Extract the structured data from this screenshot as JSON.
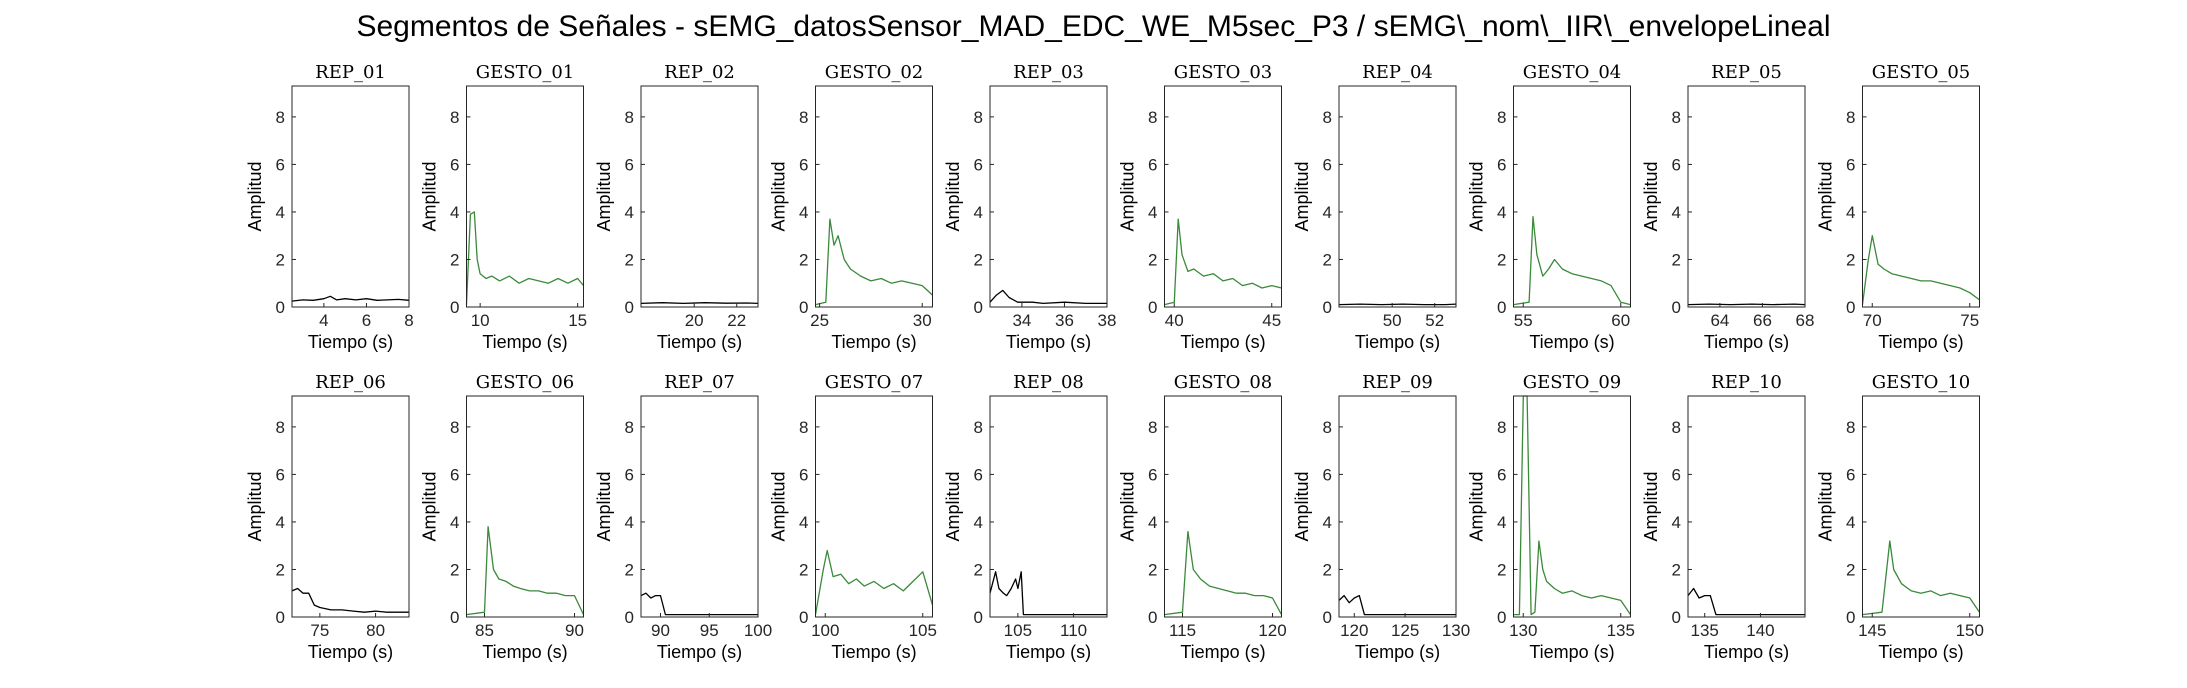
{
  "figure": {
    "title": "Segmentos de Señales - sEMG_datosSensor_MAD_EDC_WE_M5sec_P3 / sEMG\\_nom\\_IIR\\_envelopeLineal"
  },
  "colors": {
    "rep": "#000000",
    "gesto": "#3a8a3a",
    "axis": "#262626"
  },
  "chart_data": {
    "type": "line",
    "xlabel": "Tiempo (s)",
    "ylabel": "Amplitud",
    "ylim": [
      0,
      9.3
    ],
    "yticks": [
      0,
      2,
      4,
      6,
      8
    ],
    "grid": false,
    "panels": [
      {
        "title": "REP_01",
        "color": "rep",
        "xlim": [
          2.5,
          8
        ],
        "xticks": [
          4,
          6,
          8
        ],
        "x": [
          2.5,
          3.0,
          3.5,
          4.0,
          4.3,
          4.6,
          5.0,
          5.5,
          6.0,
          6.5,
          7.0,
          7.5,
          8.0
        ],
        "y": [
          0.25,
          0.3,
          0.28,
          0.35,
          0.45,
          0.3,
          0.35,
          0.3,
          0.35,
          0.28,
          0.3,
          0.32,
          0.28
        ]
      },
      {
        "title": "GESTO_01",
        "color": "gesto",
        "xlim": [
          9.3,
          15.3
        ],
        "xticks": [
          10,
          15
        ],
        "x": [
          9.3,
          9.5,
          9.7,
          9.85,
          10.0,
          10.3,
          10.6,
          11,
          11.5,
          12,
          12.5,
          13,
          13.5,
          14,
          14.5,
          15,
          15.3
        ],
        "y": [
          0.1,
          3.9,
          4.0,
          2.0,
          1.4,
          1.2,
          1.3,
          1.1,
          1.3,
          1.0,
          1.2,
          1.1,
          1.0,
          1.2,
          1.0,
          1.2,
          0.9
        ]
      },
      {
        "title": "REP_02",
        "color": "rep",
        "xlim": [
          17.5,
          23
        ],
        "xticks": [
          20,
          22
        ],
        "x": [
          17.5,
          18.5,
          19.5,
          20.5,
          21.5,
          22.5,
          23
        ],
        "y": [
          0.15,
          0.18,
          0.15,
          0.18,
          0.16,
          0.17,
          0.15
        ]
      },
      {
        "title": "GESTO_02",
        "color": "gesto",
        "xlim": [
          24.8,
          30.5
        ],
        "xticks": [
          25,
          30
        ],
        "x": [
          24.8,
          25.3,
          25.5,
          25.7,
          25.9,
          26.2,
          26.5,
          27,
          27.5,
          28,
          28.5,
          29,
          29.5,
          30,
          30.5
        ],
        "y": [
          0.1,
          0.2,
          3.7,
          2.6,
          3.0,
          2.0,
          1.6,
          1.3,
          1.1,
          1.2,
          1.0,
          1.1,
          1.0,
          0.9,
          0.5
        ]
      },
      {
        "title": "REP_03",
        "color": "rep",
        "xlim": [
          32.5,
          38
        ],
        "xticks": [
          34,
          36,
          38
        ],
        "x": [
          32.5,
          32.8,
          33.1,
          33.4,
          33.8,
          34.5,
          35,
          36,
          37,
          38
        ],
        "y": [
          0.2,
          0.5,
          0.7,
          0.4,
          0.2,
          0.2,
          0.15,
          0.2,
          0.15,
          0.15
        ]
      },
      {
        "title": "GESTO_03",
        "color": "gesto",
        "xlim": [
          39.5,
          45.5
        ],
        "xticks": [
          40,
          45
        ],
        "x": [
          39.5,
          40.0,
          40.2,
          40.4,
          40.7,
          41,
          41.5,
          42,
          42.5,
          43,
          43.5,
          44,
          44.5,
          45,
          45.5
        ],
        "y": [
          0.1,
          0.2,
          3.7,
          2.2,
          1.5,
          1.6,
          1.3,
          1.4,
          1.1,
          1.2,
          0.9,
          1.0,
          0.8,
          0.9,
          0.8
        ]
      },
      {
        "title": "REP_04",
        "color": "rep",
        "xlim": [
          47.5,
          53
        ],
        "xticks": [
          50,
          52
        ],
        "x": [
          47.5,
          48.5,
          49.5,
          50.5,
          51.5,
          52.5,
          53
        ],
        "y": [
          0.1,
          0.12,
          0.1,
          0.12,
          0.1,
          0.1,
          0.12
        ]
      },
      {
        "title": "GESTO_04",
        "color": "gesto",
        "xlim": [
          54.5,
          60.5
        ],
        "xticks": [
          55,
          60
        ],
        "x": [
          54.5,
          55.3,
          55.5,
          55.7,
          56,
          56.3,
          56.6,
          57,
          57.5,
          58,
          58.5,
          59,
          59.5,
          60,
          60.5
        ],
        "y": [
          0.1,
          0.2,
          3.8,
          2.2,
          1.3,
          1.6,
          2.0,
          1.6,
          1.4,
          1.3,
          1.2,
          1.1,
          0.9,
          0.2,
          0.1
        ]
      },
      {
        "title": "REP_05",
        "color": "rep",
        "xlim": [
          62.5,
          68
        ],
        "xticks": [
          64,
          66,
          68
        ],
        "x": [
          62.5,
          63.5,
          64.5,
          65.5,
          66.5,
          67.5,
          68
        ],
        "y": [
          0.1,
          0.12,
          0.1,
          0.12,
          0.1,
          0.12,
          0.1
        ]
      },
      {
        "title": "GESTO_05",
        "color": "gesto",
        "xlim": [
          69.5,
          75.5
        ],
        "xticks": [
          70,
          75
        ],
        "x": [
          69.5,
          69.8,
          70.0,
          70.3,
          70.6,
          71,
          71.5,
          72,
          72.5,
          73,
          73.5,
          74,
          74.5,
          75,
          75.5
        ],
        "y": [
          0.1,
          2.0,
          3.0,
          1.8,
          1.6,
          1.4,
          1.3,
          1.2,
          1.1,
          1.1,
          1.0,
          0.9,
          0.8,
          0.6,
          0.3
        ]
      },
      {
        "title": "REP_06",
        "color": "rep",
        "xlim": [
          72.5,
          83
        ],
        "xticks": [
          75,
          80
        ],
        "x": [
          72.5,
          73,
          73.5,
          74,
          74.5,
          75,
          76,
          77,
          78,
          79,
          80,
          81,
          82,
          83
        ],
        "y": [
          1.1,
          1.2,
          1.0,
          1.0,
          0.5,
          0.4,
          0.3,
          0.3,
          0.25,
          0.2,
          0.25,
          0.2,
          0.2,
          0.2
        ]
      },
      {
        "title": "GESTO_06",
        "color": "gesto",
        "xlim": [
          84,
          90.5
        ],
        "xticks": [
          85,
          90
        ],
        "x": [
          84,
          85,
          85.2,
          85.5,
          85.8,
          86.2,
          86.6,
          87,
          87.5,
          88,
          88.5,
          89,
          89.5,
          90,
          90.5
        ],
        "y": [
          0.1,
          0.2,
          3.8,
          2.0,
          1.6,
          1.5,
          1.3,
          1.2,
          1.1,
          1.1,
          1.0,
          1.0,
          0.9,
          0.9,
          0.1
        ]
      },
      {
        "title": "REP_07",
        "color": "rep",
        "xlim": [
          88,
          100
        ],
        "xticks": [
          90,
          95,
          100
        ],
        "x": [
          88,
          88.5,
          89,
          89.5,
          90,
          90.5,
          91,
          92,
          94,
          96,
          98,
          100
        ],
        "y": [
          0.9,
          1.0,
          0.8,
          0.9,
          0.9,
          0.1,
          0.1,
          0.1,
          0.1,
          0.1,
          0.1,
          0.1
        ]
      },
      {
        "title": "GESTO_07",
        "color": "gesto",
        "xlim": [
          99.5,
          105.5
        ],
        "xticks": [
          100,
          105
        ],
        "x": [
          99.5,
          99.9,
          100.1,
          100.4,
          100.8,
          101.2,
          101.6,
          102,
          102.5,
          103,
          103.5,
          104,
          104.5,
          105,
          105.5
        ],
        "y": [
          0.1,
          2.0,
          2.8,
          1.7,
          1.8,
          1.4,
          1.6,
          1.3,
          1.5,
          1.2,
          1.4,
          1.1,
          1.5,
          1.9,
          0.5
        ]
      },
      {
        "title": "REP_08",
        "color": "rep",
        "xlim": [
          102.5,
          113
        ],
        "xticks": [
          105,
          110
        ],
        "x": [
          102.5,
          103,
          103.3,
          103.7,
          104,
          104.4,
          104.8,
          105,
          105.3,
          105.5,
          106,
          108,
          110,
          113
        ],
        "y": [
          1.0,
          1.9,
          1.2,
          1.0,
          0.9,
          1.2,
          1.6,
          1.2,
          1.9,
          0.1,
          0.1,
          0.1,
          0.1,
          0.1
        ]
      },
      {
        "title": "GESTO_08",
        "color": "gesto",
        "xlim": [
          114,
          120.5
        ],
        "xticks": [
          115,
          120
        ],
        "x": [
          114,
          115,
          115.3,
          115.6,
          116,
          116.5,
          117,
          117.5,
          118,
          118.5,
          119,
          119.5,
          120,
          120.5
        ],
        "y": [
          0.1,
          0.2,
          3.6,
          2.0,
          1.6,
          1.3,
          1.2,
          1.1,
          1.0,
          1.0,
          0.9,
          0.9,
          0.8,
          0.1
        ]
      },
      {
        "title": "REP_09",
        "color": "rep",
        "xlim": [
          118.5,
          130
        ],
        "xticks": [
          120,
          125,
          130
        ],
        "x": [
          118.5,
          119,
          119.5,
          120,
          120.5,
          121,
          122,
          124,
          126,
          128,
          130
        ],
        "y": [
          0.7,
          0.9,
          0.6,
          0.8,
          0.9,
          0.1,
          0.1,
          0.1,
          0.1,
          0.1,
          0.1
        ]
      },
      {
        "title": "GESTO_09",
        "color": "gesto",
        "xlim": [
          129.5,
          135.5
        ],
        "xticks": [
          130,
          135
        ],
        "x": [
          129.5,
          129.8,
          130.0,
          130.2,
          130.4,
          130.6,
          130.8,
          131.0,
          131.2,
          131.6,
          132,
          132.5,
          133,
          133.5,
          134,
          134.5,
          135,
          135.5
        ],
        "y": [
          0.1,
          0.1,
          9.3,
          9.3,
          0.1,
          0.2,
          3.2,
          2.0,
          1.5,
          1.2,
          1.0,
          1.1,
          0.9,
          0.8,
          0.9,
          0.8,
          0.7,
          0.1
        ]
      },
      {
        "title": "REP_10",
        "color": "rep",
        "xlim": [
          133.5,
          144
        ],
        "xticks": [
          135,
          140
        ],
        "x": [
          133.5,
          134,
          134.5,
          135,
          135.5,
          136,
          137,
          138,
          140,
          142,
          144
        ],
        "y": [
          0.9,
          1.2,
          0.8,
          0.9,
          0.9,
          0.1,
          0.1,
          0.1,
          0.1,
          0.1,
          0.1
        ]
      },
      {
        "title": "GESTO_10",
        "color": "gesto",
        "xlim": [
          144.5,
          150.5
        ],
        "xticks": [
          145,
          150
        ],
        "x": [
          144.5,
          145.5,
          145.9,
          146.1,
          146.5,
          147,
          147.5,
          148,
          148.5,
          149,
          149.5,
          150,
          150.5
        ],
        "y": [
          0.1,
          0.2,
          3.2,
          2.0,
          1.4,
          1.1,
          1.0,
          1.1,
          0.9,
          1.0,
          0.9,
          0.8,
          0.2
        ]
      }
    ]
  }
}
